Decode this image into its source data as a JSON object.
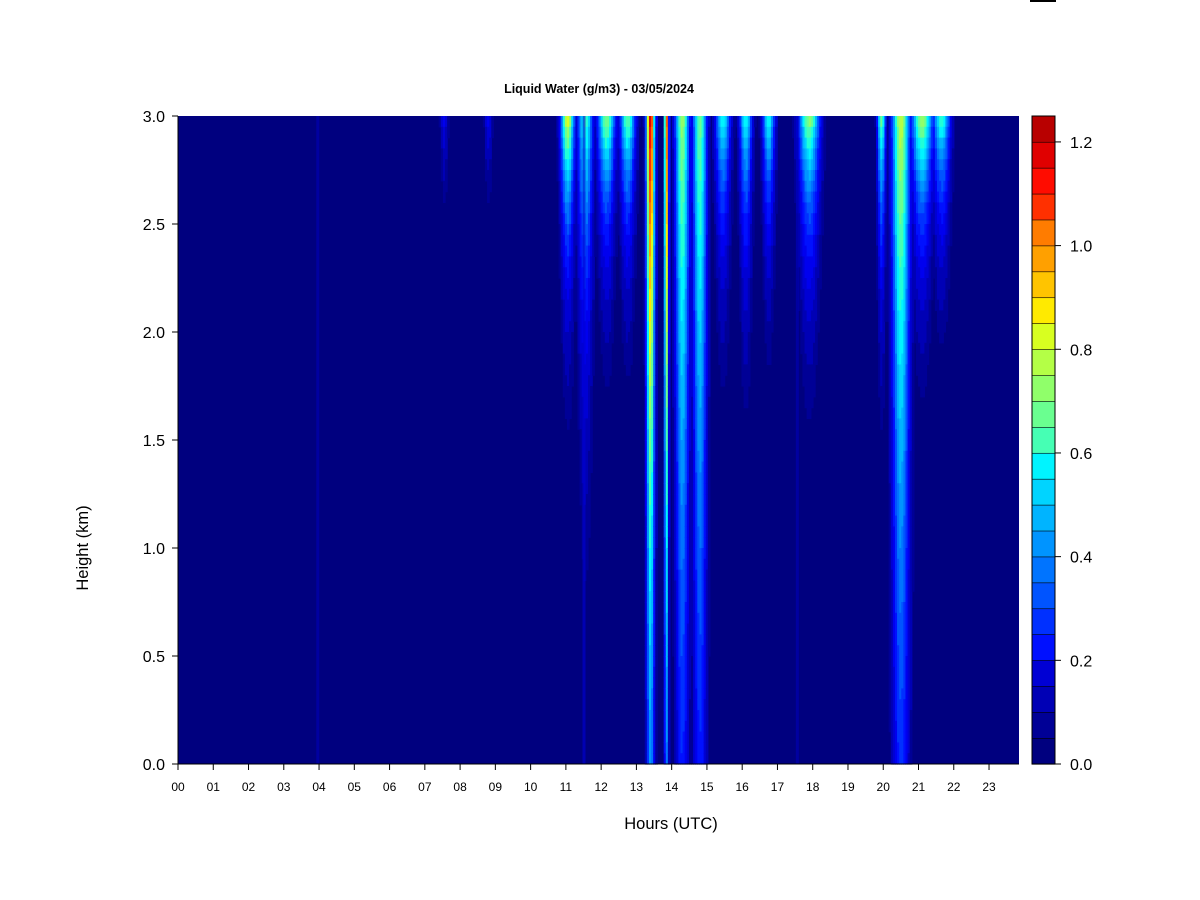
{
  "chart_data": {
    "type": "heatmap",
    "title": "Liquid Water (g/m3) - 03/05/2024",
    "xlabel": "Hours (UTC)",
    "ylabel": "Height (km)",
    "x_ticks": [
      "00",
      "01",
      "02",
      "03",
      "04",
      "05",
      "06",
      "07",
      "08",
      "09",
      "10",
      "11",
      "12",
      "13",
      "14",
      "15",
      "16",
      "17",
      "18",
      "19",
      "20",
      "21",
      "22",
      "23"
    ],
    "xlim": [
      0,
      23.85
    ],
    "y_ticks": [
      "0.0",
      "0.5",
      "1.0",
      "1.5",
      "2.0",
      "2.5",
      "3.0"
    ],
    "ylim": [
      0,
      3
    ],
    "colorbar": {
      "ticks": [
        "0.0",
        "0.2",
        "0.4",
        "0.6",
        "0.8",
        "1.0",
        "1.2"
      ],
      "range": [
        0,
        1.25
      ],
      "levels": 25,
      "colors": [
        "#00007f",
        "#000096",
        "#0000b5",
        "#0000d4",
        "#0000ef",
        "#0010ff",
        "#0030ff",
        "#0054ff",
        "#0074ff",
        "#0094ff",
        "#00b4ff",
        "#00d4ff",
        "#00f4ff",
        "#20ffd8",
        "#46ffb4",
        "#6aff90",
        "#90ff6a",
        "#b4ff46",
        "#d8ff20",
        "#ffea00",
        "#ffc400",
        "#ffa000",
        "#ff7c00",
        "#ff5800",
        "#ff3000",
        "#ff0c00",
        "#e00000",
        "#b80000",
        "#7f0000"
      ]
    },
    "background_value": 0.0,
    "events": [
      {
        "time": 7.55,
        "width": 0.12,
        "peak": 0.2,
        "depth": 0.35
      },
      {
        "time": 8.8,
        "width": 0.12,
        "peak": 0.22,
        "depth": 0.3
      },
      {
        "time": 11.05,
        "width": 0.2,
        "peak": 0.85,
        "depth": 0.55
      },
      {
        "time": 11.55,
        "width": 0.22,
        "peak": 0.65,
        "depth": 0.9
      },
      {
        "time": 12.15,
        "width": 0.25,
        "peak": 0.75,
        "depth": 0.5
      },
      {
        "time": 12.75,
        "width": 0.22,
        "peak": 0.7,
        "depth": 0.5
      },
      {
        "time": 13.4,
        "width": 0.12,
        "peak": 1.2,
        "depth": 2.8
      },
      {
        "time": 13.85,
        "width": 0.06,
        "peak": 1.1,
        "depth": 3.0
      },
      {
        "time": 14.3,
        "width": 0.2,
        "peak": 0.75,
        "depth": 2.9
      },
      {
        "time": 14.8,
        "width": 0.2,
        "peak": 0.7,
        "depth": 3.0
      },
      {
        "time": 15.45,
        "width": 0.22,
        "peak": 0.6,
        "depth": 0.55
      },
      {
        "time": 16.1,
        "width": 0.18,
        "peak": 0.6,
        "depth": 0.6
      },
      {
        "time": 16.75,
        "width": 0.18,
        "peak": 0.6,
        "depth": 0.5
      },
      {
        "time": 17.9,
        "width": 0.3,
        "peak": 0.75,
        "depth": 0.55
      },
      {
        "time": 19.95,
        "width": 0.12,
        "peak": 0.7,
        "depth": 0.6
      },
      {
        "time": 20.5,
        "width": 0.25,
        "peak": 0.8,
        "depth": 2.9
      },
      {
        "time": 21.1,
        "width": 0.3,
        "peak": 0.8,
        "depth": 0.5
      },
      {
        "time": 21.65,
        "width": 0.25,
        "peak": 0.65,
        "depth": 0.45
      }
    ],
    "thin_streaks": [
      {
        "time": 3.95,
        "peak": 0.12
      },
      {
        "time": 11.5,
        "peak": 0.15
      },
      {
        "time": 17.55,
        "peak": 0.1
      }
    ],
    "grid": false,
    "legend": "colorbar-right"
  }
}
